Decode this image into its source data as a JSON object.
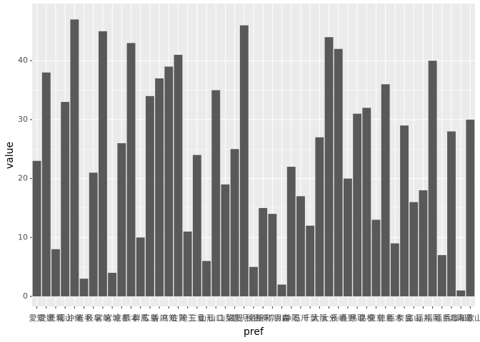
{
  "chart_data": {
    "type": "bar",
    "x_label": "pref",
    "y_label": "value",
    "categories": [
      "愛知",
      "愛媛",
      "茨城",
      "岡山",
      "沖縄",
      "岩手",
      "岐阜",
      "宮崎",
      "宮城",
      "京都",
      "熊本",
      "群馬",
      "広島",
      "香川",
      "高知",
      "佐賀",
      "埼玉",
      "三重",
      "山形",
      "山口",
      "山梨",
      "滋賀",
      "鹿児島",
      "秋田",
      "新潟",
      "神奈川",
      "青森",
      "静岡",
      "石川",
      "千葉",
      "大阪",
      "大分",
      "長崎",
      "長野",
      "鳥取",
      "島根",
      "東京",
      "徳島",
      "栃木",
      "奈良",
      "富山",
      "福井",
      "福岡",
      "福島",
      "兵庫",
      "北海道",
      "和歌山"
    ],
    "values": [
      23,
      38,
      8,
      33,
      47,
      3,
      21,
      45,
      4,
      26,
      43,
      10,
      34,
      37,
      39,
      41,
      11,
      24,
      6,
      35,
      19,
      25,
      46,
      5,
      15,
      14,
      2,
      22,
      17,
      12,
      27,
      44,
      42,
      20,
      31,
      32,
      13,
      36,
      9,
      29,
      16,
      18,
      40,
      7,
      28,
      1,
      30
    ],
    "color": "#595959",
    "ylim": [
      -1.7,
      49.7
    ],
    "yticks": [
      0,
      10,
      20,
      30,
      40
    ],
    "grid": true
  }
}
